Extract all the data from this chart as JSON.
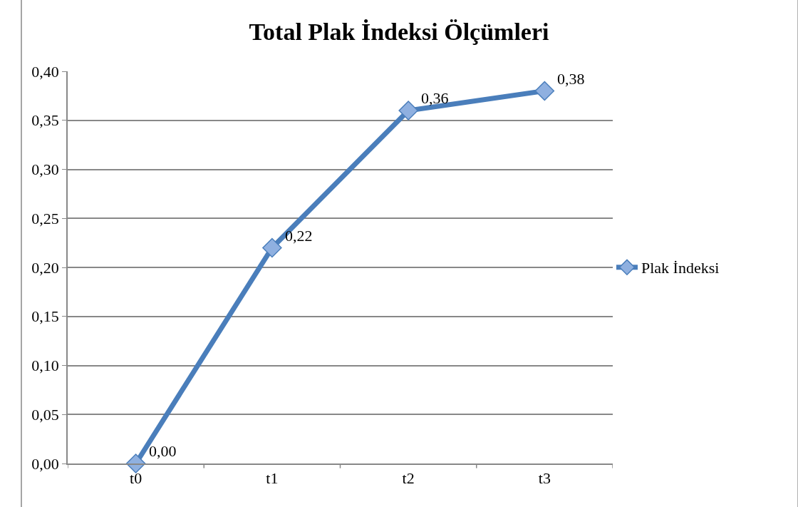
{
  "chart_data": {
    "type": "line",
    "title": "Total Plak İndeksi Ölçümleri",
    "categories": [
      "t0",
      "t1",
      "t2",
      "t3"
    ],
    "series": [
      {
        "name": "Plak İndeksi",
        "color": "#4a7ebb",
        "values": [
          0.0,
          0.22,
          0.36,
          0.38
        ],
        "value_labels": [
          "0,00",
          "0,22",
          "0,36",
          "0,38"
        ]
      }
    ],
    "ylim": [
      0,
      0.4
    ],
    "yticks": [
      {
        "value": 0,
        "label": "0,00"
      },
      {
        "value": 0.05,
        "label": "0,05"
      },
      {
        "value": 0.1,
        "label": "0,10"
      },
      {
        "value": 0.15,
        "label": "0,15"
      },
      {
        "value": 0.2,
        "label": "0,20"
      },
      {
        "value": 0.25,
        "label": "0,25"
      },
      {
        "value": 0.3,
        "label": "0,30"
      },
      {
        "value": 0.35,
        "label": "0,35"
      },
      {
        "value": 0.4,
        "label": "0,40"
      }
    ],
    "grid": "y",
    "legend": "right",
    "marker": "diamond",
    "line_style": "solid"
  }
}
